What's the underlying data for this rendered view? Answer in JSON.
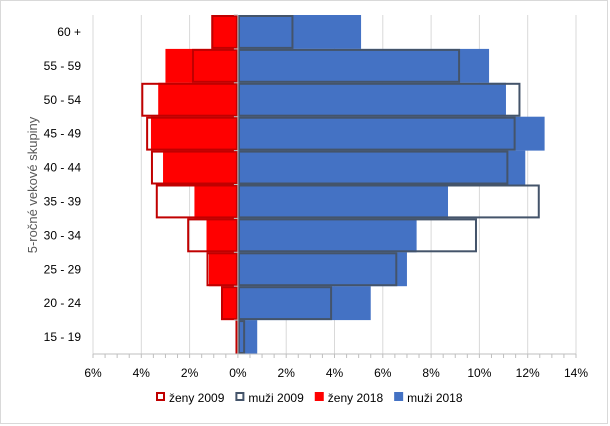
{
  "chart_data": {
    "type": "bar",
    "orientation": "horizontal",
    "subtype": "population-pyramid",
    "ylabel": "5-ročné vekové skupiny",
    "xlabel": "",
    "title": "",
    "categories": [
      "15 - 19",
      "20 - 24",
      "25 - 29",
      "30 - 34",
      "35 - 39",
      "40 - 44",
      "45 - 49",
      "50 - 54",
      "55 - 59",
      "60 +"
    ],
    "xlim": [
      -6,
      14
    ],
    "xticks": [
      -6,
      -4,
      -2,
      0,
      2,
      4,
      6,
      8,
      10,
      12,
      14
    ],
    "xtick_labels": [
      "6%",
      "4%",
      "2%",
      "0%",
      "2%",
      "4%",
      "6%",
      "8%",
      "10%",
      "12%",
      "14%"
    ],
    "grid": true,
    "legend_position": "bottom",
    "series": [
      {
        "name": "muži 2018",
        "side": "right",
        "style": "filled",
        "color": "#4472c4",
        "values": [
          0.8,
          5.5,
          7.0,
          7.4,
          8.7,
          11.9,
          12.7,
          11.1,
          10.4,
          5.1
        ]
      },
      {
        "name": "ženy 2018",
        "side": "left",
        "style": "filled",
        "color": "#ff0000",
        "values": [
          0.1,
          0.7,
          1.2,
          1.3,
          1.8,
          3.1,
          3.6,
          3.3,
          3.0,
          1.1
        ]
      },
      {
        "name": "muži 2009",
        "side": "right",
        "style": "outline",
        "color": "#44546a",
        "values": [
          0.3,
          3.9,
          6.6,
          9.9,
          12.5,
          11.2,
          11.5,
          11.7,
          9.2,
          2.3
        ]
      },
      {
        "name": "ženy 2009",
        "side": "left",
        "style": "outline",
        "color": "#c00000",
        "values": [
          0.1,
          0.7,
          1.3,
          2.1,
          3.4,
          3.6,
          3.8,
          4.0,
          1.9,
          1.1
        ]
      }
    ],
    "legend_order": [
      "ženy 2009",
      "muži 2009",
      "ženy 2018",
      "muži 2018"
    ]
  }
}
